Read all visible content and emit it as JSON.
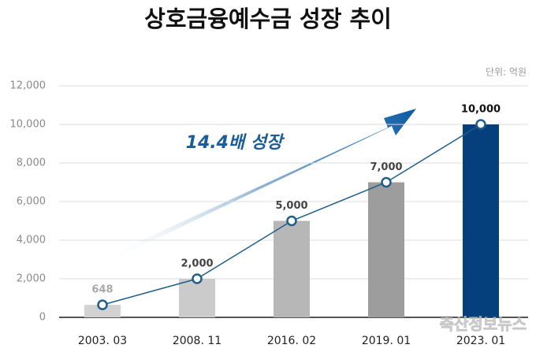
{
  "chart_data": {
    "type": "bar",
    "title": "상호금융예수금 성장 추이",
    "unit": "단위: 억원",
    "annotation": "14.4배 성장",
    "watermark": "축산정보뉴스",
    "categories": [
      "2003. 03",
      "2008. 11",
      "2016. 02",
      "2019. 01",
      "2023. 01"
    ],
    "values": [
      648,
      2000,
      5000,
      7000,
      10000
    ],
    "value_labels": [
      "648",
      "2,000",
      "5,000",
      "7,000",
      "10,000"
    ],
    "colors": [
      "#d2d2d2",
      "#cbcbcb",
      "#b7b7b7",
      "#9d9d9d",
      "#053f7c"
    ],
    "line": true,
    "line_color": "#1d5f8a",
    "ylim": [
      0,
      12000
    ],
    "yticks": [
      0,
      {
        "value": 2000,
        "label": "2,000"
      },
      {
        "value": 4000,
        "label": "4,000"
      },
      {
        "value": 6000,
        "label": "6,000"
      },
      {
        "value": 8000,
        "label": "8,000"
      },
      {
        "value": 10000,
        "label": "10,000"
      },
      {
        "value": 12000,
        "label": "12,000"
      }
    ],
    "grid": true
  }
}
